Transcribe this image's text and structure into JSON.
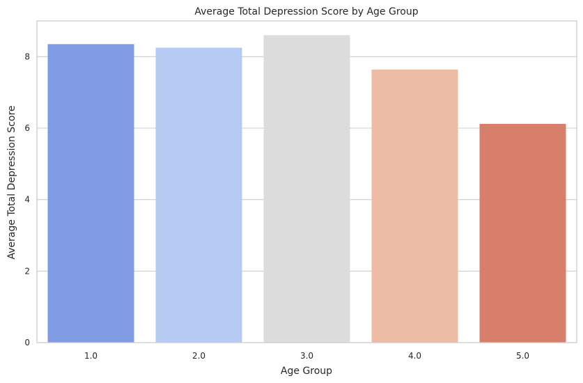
{
  "chart_data": {
    "type": "bar",
    "title": "Average Total Depression Score by Age Group",
    "xlabel": "Age Group",
    "ylabel": "Average Total Depression Score",
    "categories": [
      "1.0",
      "2.0",
      "3.0",
      "4.0",
      "5.0"
    ],
    "values": [
      8.35,
      8.25,
      8.6,
      7.64,
      6.12
    ],
    "colors": [
      "#7f9be4",
      "#b5cbf4",
      "#dcdcdc",
      "#edbca4",
      "#d77f6b"
    ],
    "ylim": [
      0,
      9.0
    ],
    "yticks": [
      "0",
      "2",
      "4",
      "6",
      "8"
    ],
    "grid": "horizontal"
  }
}
